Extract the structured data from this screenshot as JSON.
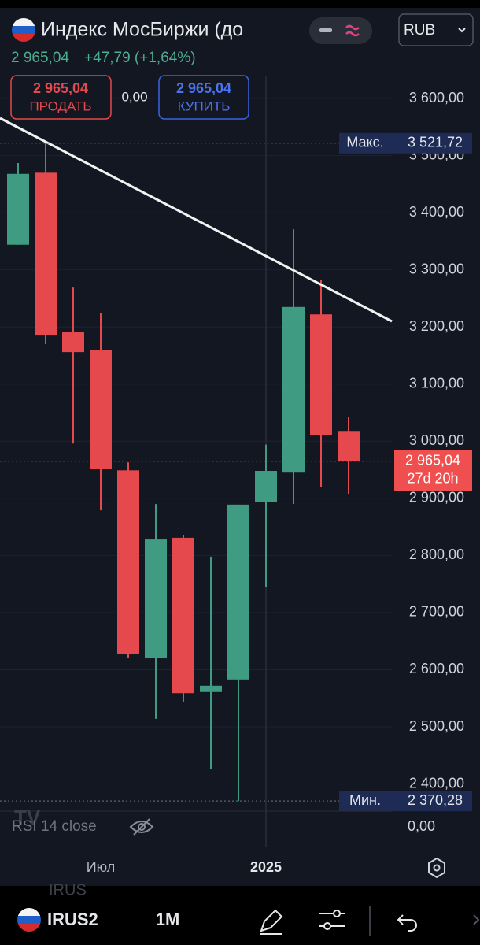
{
  "header": {
    "title": "Индекс МосБиржи (до",
    "price": "2 965,04",
    "change": "+47,79 (+1,64%)",
    "sell_price": "2 965,04",
    "sell_label": "ПРОДАТЬ",
    "spread": "0,00",
    "buy_price": "2 965,04",
    "buy_label": "КУПИТЬ",
    "currency": "RUB"
  },
  "chart_data": {
    "type": "candlestick",
    "categories": [
      null,
      null,
      null,
      "Июл",
      null,
      null,
      null,
      null,
      null,
      "2025",
      null,
      null,
      null
    ],
    "open": [
      3344,
      3470,
      3192,
      3160,
      2949,
      2621,
      2831,
      2561,
      2583,
      2893,
      2945,
      3222,
      3018
    ],
    "high": [
      3487,
      3521.72,
      3269,
      3225,
      2963,
      2890,
      2836,
      2798,
      2889,
      2994,
      3371,
      3282,
      3043
    ],
    "low": [
      3344,
      3170,
      2996,
      2879,
      2620,
      2514,
      2543,
      2426,
      2370.28,
      2745,
      2890,
      2920,
      2908
    ],
    "close": [
      3468,
      3185,
      3156,
      2952,
      2628,
      2828,
      2559,
      2572,
      2889,
      2948,
      3235,
      3011,
      2965.04
    ],
    "up_color": "#3f9c82",
    "down_color": "#e5484d",
    "ylim": [
      2360,
      3640
    ],
    "yticks": [
      {
        "value": 2400,
        "label": "2 400,00"
      },
      {
        "value": 2500,
        "label": "2 500,00"
      },
      {
        "value": 2600,
        "label": "2 600,00"
      },
      {
        "value": 2700,
        "label": "2 700,00"
      },
      {
        "value": 2800,
        "label": "2 800,00"
      },
      {
        "value": 2900,
        "label": "2 900,00"
      },
      {
        "value": 3000,
        "label": "3 000,00"
      },
      {
        "value": 3100,
        "label": "3 100,00"
      },
      {
        "value": 3200,
        "label": "3 200,00"
      },
      {
        "value": 3300,
        "label": "3 300,00"
      },
      {
        "value": 3400,
        "label": "3 400,00"
      },
      {
        "value": 3500,
        "label": "3 500,00"
      },
      {
        "value": 3600,
        "label": "3 600,00"
      }
    ],
    "grid": true,
    "max_marker": {
      "label": "Макс.",
      "value": 3521.72,
      "value_label": "3 521,72"
    },
    "min_marker": {
      "label": "Мин.",
      "value": 2370.28,
      "value_label": "2 370,28"
    },
    "last_marker": {
      "value": 2965.04,
      "value_label": "2 965,04",
      "countdown": "27d 20h"
    }
  },
  "indicator": {
    "name": "RSI 14 close",
    "value": "0,00"
  },
  "toolbar": {
    "watermark": "IRUS",
    "symbol": "IRUS2",
    "interval": "1M"
  }
}
